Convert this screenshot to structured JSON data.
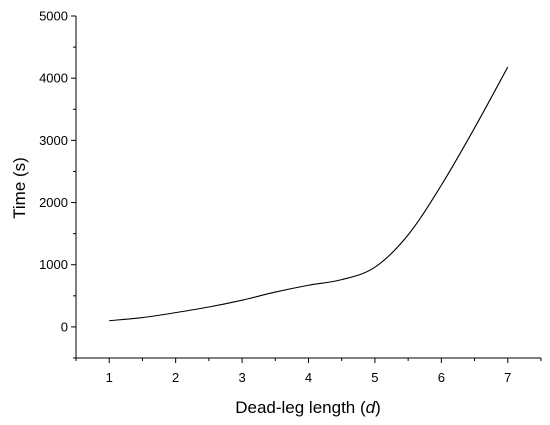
{
  "chart_data": {
    "type": "line",
    "xlabel_main": "Dead-leg length (",
    "xlabel_var": "d",
    "xlabel_close": ")",
    "ylabel": "Time (s)",
    "xlim": [
      0.5,
      7.5
    ],
    "ylim": [
      -500,
      5000
    ],
    "xticks": [
      1,
      2,
      3,
      4,
      5,
      6,
      7
    ],
    "yticks": [
      0,
      1000,
      2000,
      3000,
      4000,
      5000
    ],
    "grid": false,
    "series": [
      {
        "x": [
          1,
          1.5,
          2,
          2.5,
          3,
          3.5,
          4,
          4.5,
          5,
          5.5,
          6,
          6.5,
          7
        ],
        "y": [
          100,
          150,
          230,
          320,
          430,
          560,
          670,
          760,
          960,
          1480,
          2280,
          3200,
          4180
        ]
      }
    ]
  }
}
